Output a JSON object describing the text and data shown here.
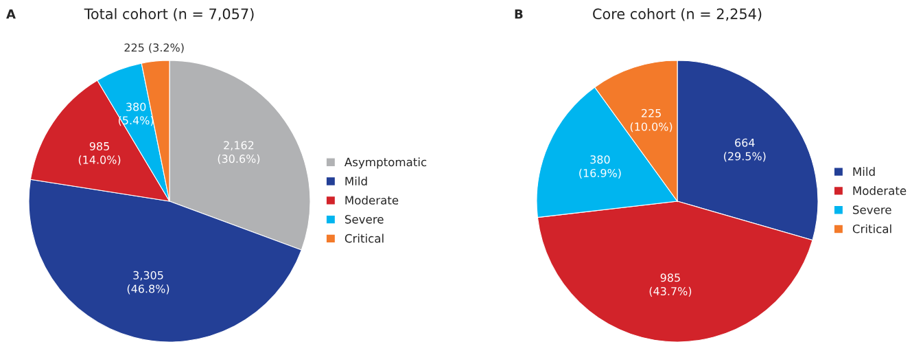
{
  "chart_data": [
    {
      "type": "pie",
      "title": "Total cohort (n = 7,057)",
      "annotations": [
        "A"
      ],
      "categories": [
        "Asymptomatic",
        "Mild",
        "Moderate",
        "Severe",
        "Critical"
      ],
      "values": [
        2162,
        3305,
        985,
        380,
        225
      ],
      "value_labels": [
        "2,162\n(30.6%)",
        "3,305\n(46.8%)",
        "985\n(14.0%)",
        "380\n(5.4%)",
        "225 (3.2%)"
      ],
      "colors": [
        "#b1b2b4",
        "#233f96",
        "#d2232a",
        "#00b5ef",
        "#f37a2a"
      ],
      "legend": "right"
    },
    {
      "type": "pie",
      "title": "Core cohort (n = 2,254)",
      "annotations": [
        "B"
      ],
      "categories": [
        "Mild",
        "Moderate",
        "Severe",
        "Critical"
      ],
      "values": [
        664,
        985,
        380,
        225
      ],
      "value_labels": [
        "664\n(29.5%)",
        "985\n(43.7%)",
        "380\n(16.9%)",
        "225\n(10.0%)"
      ],
      "colors": [
        "#233f96",
        "#d2232a",
        "#00b5ef",
        "#f37a2a"
      ],
      "legend": "right"
    }
  ]
}
